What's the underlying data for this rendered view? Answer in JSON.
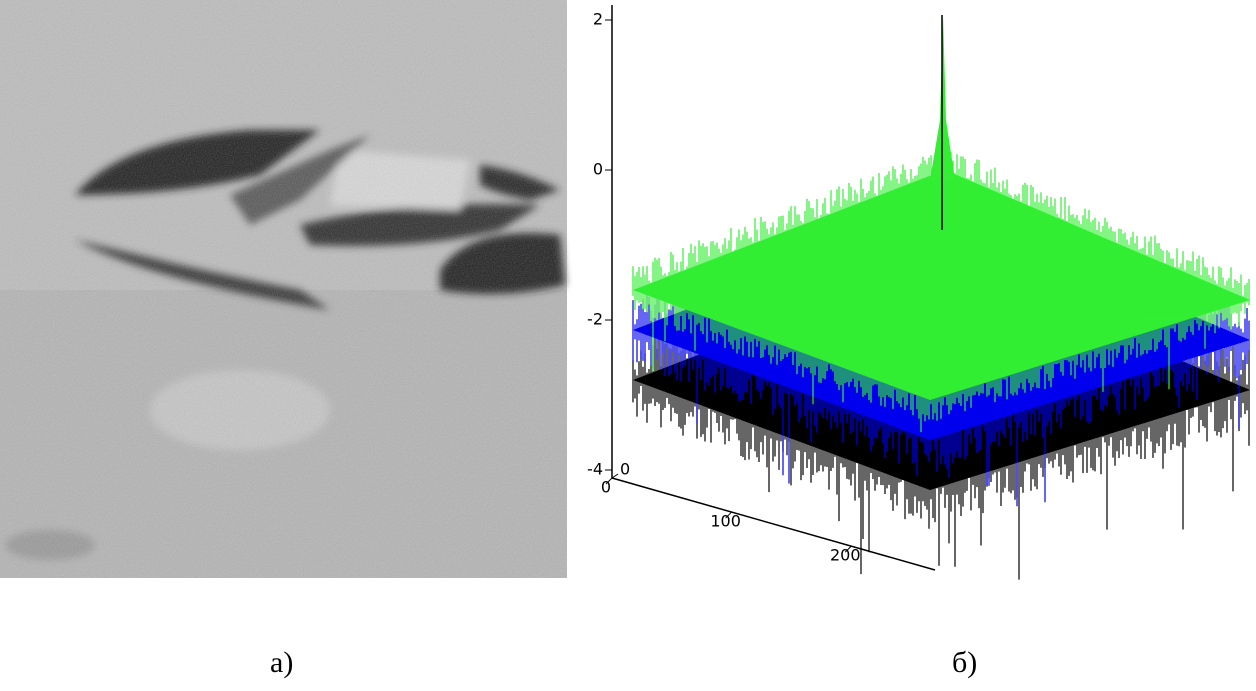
{
  "figure": {
    "panels": [
      {
        "caption": "а)"
      },
      {
        "caption": "б)",
        "zlim": [
          -4,
          2
        ],
        "zticks": [
          2,
          0,
          -2,
          -4
        ],
        "xlim": [
          0,
          270
        ],
        "xticks": [
          0,
          100,
          200
        ],
        "yticks": [
          0
        ]
      }
    ]
  }
}
